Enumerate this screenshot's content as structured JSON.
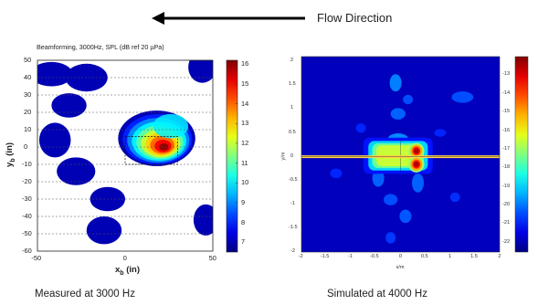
{
  "header": {
    "flow_label": "Flow Direction",
    "arrow_direction": "left"
  },
  "captions": {
    "left": "Measured at 3000 Hz",
    "right": "Simulated at 4000 Hz"
  },
  "colors": {
    "jet_low": "#00008f",
    "jet_high": "#800000",
    "beam_line": "#ffd24a"
  },
  "chart_data": [
    {
      "type": "heatmap",
      "title": "Beamforming, 3000Hz, SPL (dB ref 20 µPa)",
      "xlabel": "x_b (in)",
      "ylabel": "y_b (in)",
      "xlim": [
        -50,
        50
      ],
      "ylim": [
        -60,
        50
      ],
      "x_ticks": [
        "-50",
        "0",
        "50"
      ],
      "y_ticks": [
        "50",
        "40",
        "30",
        "20",
        "10",
        "0",
        "-10",
        "-20",
        "-30",
        "-40",
        "-50",
        "-60"
      ],
      "grid": "horizontal dashed lines",
      "colorbar": {
        "min": 6.5,
        "max": 16.2,
        "ticks": [
          "16",
          "15",
          "14",
          "13",
          "12",
          "11",
          "10",
          "9",
          "8",
          "7"
        ]
      },
      "peak": {
        "x": 22,
        "y": 0,
        "level_db": 16
      },
      "box": {
        "x": [
          0,
          30
        ],
        "y": [
          -10,
          6
        ]
      },
      "features": [
        {
          "x": 20,
          "y": 3,
          "level_db": 13.5
        },
        {
          "x": 26,
          "y": 12,
          "level_db": 10
        },
        {
          "x": -42,
          "y": 42,
          "level_db": 7
        },
        {
          "x": -22,
          "y": 40,
          "level_db": 7
        },
        {
          "x": -32,
          "y": 24,
          "level_db": 7
        },
        {
          "x": -40,
          "y": 4,
          "level_db": 7
        },
        {
          "x": -28,
          "y": -14,
          "level_db": 7
        },
        {
          "x": -10,
          "y": -30,
          "level_db": 7
        },
        {
          "x": -12,
          "y": -48,
          "level_db": 7
        },
        {
          "x": 44,
          "y": 46,
          "level_db": 7
        },
        {
          "x": 46,
          "y": -42,
          "level_db": 7
        }
      ]
    },
    {
      "type": "heatmap",
      "xlabel": "x/m",
      "ylabel": "y/m",
      "xlim": [
        -2,
        2
      ],
      "ylim": [
        -2,
        2.1
      ],
      "x_ticks": [
        "-2",
        "-1.5",
        "-1",
        "-0.5",
        "0",
        "0.5",
        "1",
        "1.5",
        "2"
      ],
      "y_ticks": [
        "2",
        "1.5",
        "1",
        "0.5",
        "0",
        "-0.5",
        "-1",
        "-1.5",
        "-2"
      ],
      "colorbar": {
        "min": -22.5,
        "max": -12,
        "ticks": [
          "-13",
          "-14",
          "-15",
          "-16",
          "-17",
          "-18",
          "-19",
          "-20",
          "-21",
          "-22"
        ]
      },
      "line_y": 0,
      "hotspots": [
        {
          "x": 0.32,
          "y": 0.12,
          "level": -13
        },
        {
          "x": 0.32,
          "y": -0.16,
          "level": -13
        },
        {
          "x": -0.22,
          "y": 0.0,
          "level": -16.5
        }
      ]
    }
  ]
}
